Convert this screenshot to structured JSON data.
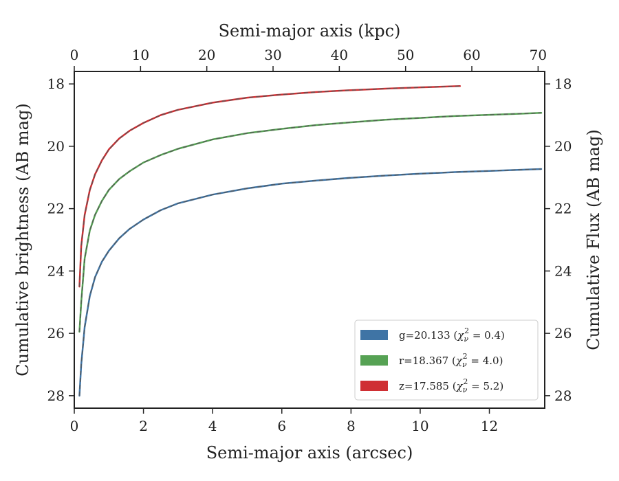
{
  "chart_data": {
    "type": "line",
    "xlabel": "Semi-major axis (arcsec)",
    "xlabel_top": "Semi-major axis (kpc)",
    "ylabel": "Cumulative brightness (AB mag)",
    "ylabel_right": "Cumulative Flux (AB mag)",
    "xlim": [
      0,
      13.6
    ],
    "xlim_top": [
      0,
      71
    ],
    "ylim": [
      28.4,
      17.6
    ],
    "y_inverted": true,
    "x_ticks": [
      0,
      2,
      4,
      6,
      8,
      10,
      12
    ],
    "x_ticks_top": [
      0,
      10,
      20,
      30,
      40,
      50,
      60,
      70
    ],
    "y_ticks": [
      18,
      20,
      22,
      24,
      26,
      28
    ],
    "grid": false,
    "legend_position": "lower-right",
    "legend": {
      "g": {
        "main": "g=20.133 (",
        "math": "χ",
        "sub": "ν",
        "sup": "2",
        "tail": " = 0.4)"
      },
      "r": {
        "main": "r=18.367 (",
        "math": "χ",
        "sub": "ν",
        "sup": "2",
        "tail": " = 4.0)"
      },
      "z": {
        "main": "z=17.585 (",
        "math": "χ",
        "sub": "ν",
        "sup": "2",
        "tail": " = 5.2)"
      }
    },
    "series": [
      {
        "key": "g",
        "color": "#3f74a5",
        "x": [
          0.15,
          0.2,
          0.3,
          0.45,
          0.6,
          0.8,
          1.0,
          1.3,
          1.6,
          2.0,
          2.5,
          3.0,
          4.0,
          5.0,
          6.0,
          7.0,
          8.0,
          9.0,
          10.0,
          11.0,
          12.0,
          13.5
        ],
        "y": [
          28.0,
          27.0,
          25.8,
          24.8,
          24.2,
          23.7,
          23.35,
          22.95,
          22.65,
          22.35,
          22.05,
          21.83,
          21.55,
          21.35,
          21.2,
          21.1,
          21.01,
          20.94,
          20.88,
          20.83,
          20.79,
          20.73
        ]
      },
      {
        "key": "r",
        "color": "#56a254",
        "x": [
          0.15,
          0.2,
          0.3,
          0.45,
          0.6,
          0.8,
          1.0,
          1.3,
          1.6,
          2.0,
          2.5,
          3.0,
          4.0,
          5.0,
          6.0,
          7.0,
          8.0,
          9.0,
          10.0,
          11.0,
          12.0,
          13.5
        ],
        "y": [
          25.95,
          25.0,
          23.6,
          22.7,
          22.2,
          21.75,
          21.4,
          21.05,
          20.8,
          20.52,
          20.28,
          20.08,
          19.78,
          19.58,
          19.44,
          19.32,
          19.23,
          19.15,
          19.09,
          19.03,
          18.99,
          18.93
        ]
      },
      {
        "key": "z",
        "color": "#cf2f33",
        "x": [
          0.15,
          0.2,
          0.3,
          0.45,
          0.6,
          0.8,
          1.0,
          1.3,
          1.6,
          2.0,
          2.5,
          3.0,
          4.0,
          5.0,
          6.0,
          7.0,
          8.0,
          9.0,
          10.0,
          11.15
        ],
        "y": [
          24.5,
          23.2,
          22.2,
          21.4,
          20.9,
          20.45,
          20.1,
          19.75,
          19.5,
          19.25,
          19.0,
          18.83,
          18.6,
          18.44,
          18.34,
          18.26,
          18.2,
          18.15,
          18.11,
          18.07
        ]
      }
    ]
  }
}
